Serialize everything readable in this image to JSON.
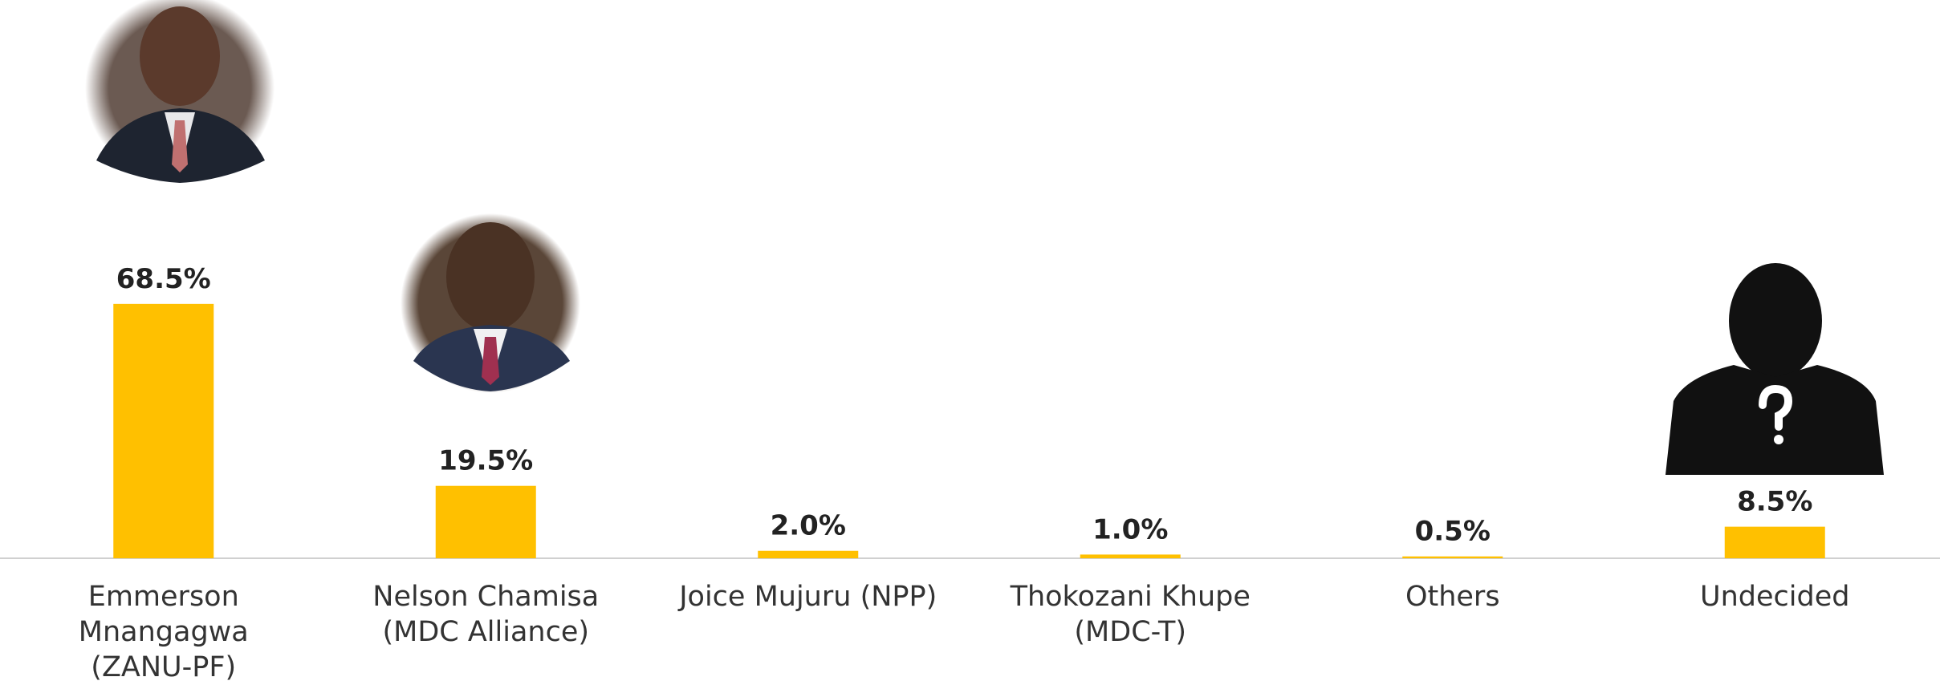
{
  "chart_data": {
    "type": "bar",
    "categories": [
      "Emmerson\nMnangagwa\n(ZANU-PF)",
      "Nelson Chamisa\n(MDC Alliance)",
      "Joice Mujuru  (NPP)",
      "Thokozani Khupe\n(MDC-T)",
      "Others",
      "Undecided"
    ],
    "values": [
      68.5,
      19.5,
      2.0,
      1.0,
      0.5,
      8.5
    ],
    "value_labels": [
      "68.5%",
      "19.5%",
      "2.0%",
      "1.0%",
      "0.5%",
      "8.5%"
    ],
    "color": "#ffc000"
  }
}
